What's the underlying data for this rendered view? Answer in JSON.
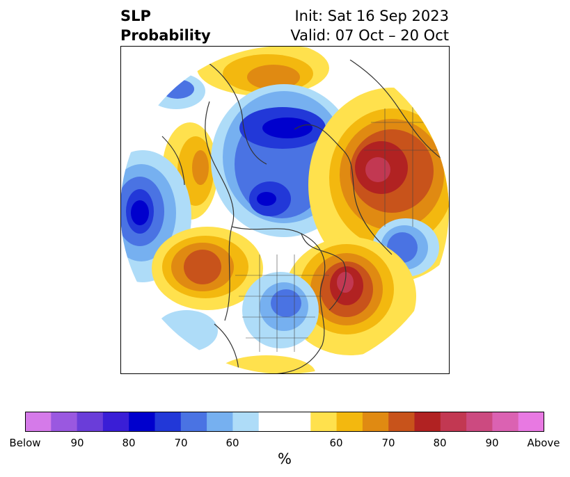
{
  "header": {
    "title_lines": [
      "SLP",
      "Probability"
    ],
    "init_text": "Init: Sat 16 Sep 2023",
    "valid_text": "Valid: 07 Oct – 20 Oct"
  },
  "colorbar": {
    "bins": [
      "#d57ae9",
      "#9a58e0",
      "#6a3dd9",
      "#3a1ed6",
      "#0000cd",
      "#2238d8",
      "#4a73e3",
      "#76b0f0",
      "#aedcf8",
      "#ffffff",
      "#ffffff",
      "#ffe14d",
      "#f3b80f",
      "#e08a12",
      "#c8531b",
      "#b12222",
      "#c23852",
      "#cc4a80",
      "#db62b2",
      "#e879e2"
    ],
    "tick_labels": [
      "Below",
      "90",
      "80",
      "70",
      "60",
      "60",
      "70",
      "80",
      "90",
      "Above"
    ],
    "unit": "%"
  }
}
